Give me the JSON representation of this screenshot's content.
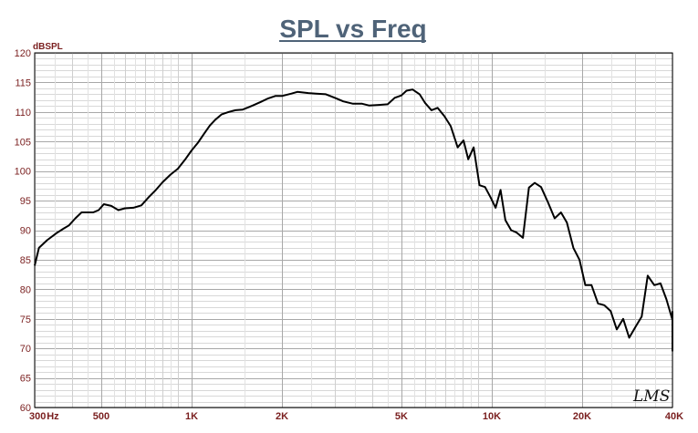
{
  "chart_data": {
    "type": "line",
    "title": "SPL vs Freq",
    "ylabel": "dBSPL",
    "xlabel": "",
    "x_scale": "log",
    "xlim": [
      300,
      40000
    ],
    "ylim": [
      60,
      120
    ],
    "grid": true,
    "y_ticks": [
      "60",
      "65",
      "70",
      "75",
      "80",
      "85",
      "90",
      "95",
      "100",
      "105",
      "110",
      "115",
      "120"
    ],
    "x_tick_labels": [
      {
        "label": "300",
        "value": 300
      },
      {
        "label": "Hz",
        "value": 345
      },
      {
        "label": "500",
        "value": 500
      },
      {
        "label": "1K",
        "value": 1000
      },
      {
        "label": "2K",
        "value": 2000
      },
      {
        "label": "5K",
        "value": 5000
      },
      {
        "label": "10K",
        "value": 10000
      },
      {
        "label": "20K",
        "value": 20000
      },
      {
        "label": "40K",
        "value": 40000
      }
    ],
    "watermark": "LMS",
    "series": [
      {
        "color": "#000000",
        "points": [
          [
            300,
            84
          ],
          [
            310,
            87
          ],
          [
            330,
            88.3
          ],
          [
            355,
            89.5
          ],
          [
            375,
            90.3
          ],
          [
            390,
            90.8
          ],
          [
            410,
            92
          ],
          [
            430,
            93
          ],
          [
            470,
            93
          ],
          [
            490,
            93.4
          ],
          [
            510,
            94.4
          ],
          [
            540,
            94.1
          ],
          [
            570,
            93.4
          ],
          [
            600,
            93.7
          ],
          [
            640,
            93.8
          ],
          [
            680,
            94.2
          ],
          [
            720,
            95.6
          ],
          [
            760,
            96.8
          ],
          [
            800,
            98.1
          ],
          [
            850,
            99.4
          ],
          [
            900,
            100.4
          ],
          [
            950,
            101.9
          ],
          [
            1000,
            103.5
          ],
          [
            1050,
            104.8
          ],
          [
            1100,
            106.3
          ],
          [
            1150,
            107.7
          ],
          [
            1200,
            108.7
          ],
          [
            1260,
            109.6
          ],
          [
            1330,
            110
          ],
          [
            1400,
            110.3
          ],
          [
            1480,
            110.4
          ],
          [
            1550,
            110.8
          ],
          [
            1600,
            111.1
          ],
          [
            1700,
            111.7
          ],
          [
            1800,
            112.3
          ],
          [
            1900,
            112.7
          ],
          [
            2000,
            112.7
          ],
          [
            2150,
            113.1
          ],
          [
            2250,
            113.4
          ],
          [
            2450,
            113.2
          ],
          [
            2600,
            113.1
          ],
          [
            2800,
            113
          ],
          [
            3000,
            112.4
          ],
          [
            3200,
            111.8
          ],
          [
            3450,
            111.4
          ],
          [
            3700,
            111.4
          ],
          [
            3900,
            111.1
          ],
          [
            4200,
            111.2
          ],
          [
            4500,
            111.3
          ],
          [
            4750,
            112.4
          ],
          [
            5000,
            112.8
          ],
          [
            5200,
            113.6
          ],
          [
            5450,
            113.8
          ],
          [
            5750,
            113
          ],
          [
            6000,
            111.5
          ],
          [
            6300,
            110.3
          ],
          [
            6600,
            110.7
          ],
          [
            6950,
            109.3
          ],
          [
            7300,
            107.6
          ],
          [
            7700,
            104
          ],
          [
            8050,
            105.2
          ],
          [
            8350,
            102
          ],
          [
            8700,
            104
          ],
          [
            9100,
            97.6
          ],
          [
            9500,
            97.3
          ],
          [
            9900,
            95.6
          ],
          [
            10300,
            93.8
          ],
          [
            10700,
            96.8
          ],
          [
            11100,
            91.7
          ],
          [
            11600,
            90
          ],
          [
            12100,
            89.6
          ],
          [
            12700,
            88.7
          ],
          [
            13300,
            97.2
          ],
          [
            13900,
            98
          ],
          [
            14600,
            97.3
          ],
          [
            15400,
            94.7
          ],
          [
            16200,
            92
          ],
          [
            17000,
            93
          ],
          [
            17800,
            91.3
          ],
          [
            18700,
            87
          ],
          [
            19600,
            85
          ],
          [
            20500,
            80.7
          ],
          [
            21500,
            80.7
          ],
          [
            22600,
            77.6
          ],
          [
            23700,
            77.3
          ],
          [
            24900,
            76.3
          ],
          [
            26100,
            73.2
          ],
          [
            27400,
            75
          ],
          [
            28700,
            71.8
          ],
          [
            30100,
            73.6
          ],
          [
            31600,
            75.4
          ],
          [
            33100,
            82.3
          ],
          [
            34800,
            80.7
          ],
          [
            36500,
            81
          ],
          [
            38200,
            78.3
          ],
          [
            40000,
            74.8
          ],
          [
            41900,
            76.2
          ],
          [
            43900,
            69.5
          ]
        ]
      }
    ]
  }
}
